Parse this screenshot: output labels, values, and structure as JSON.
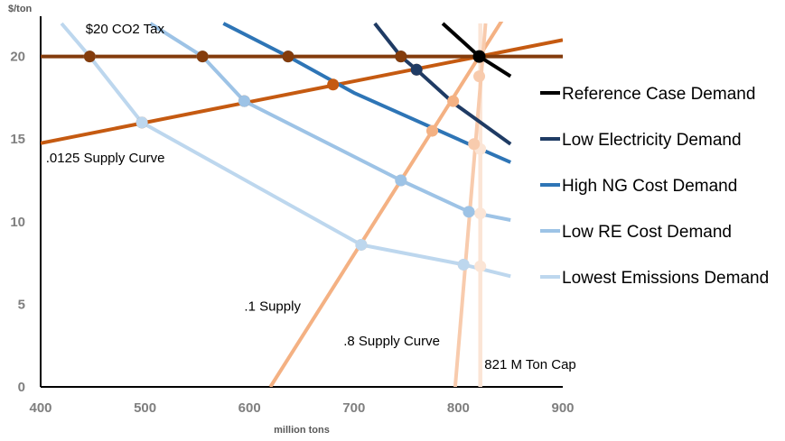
{
  "chart_data": {
    "type": "line",
    "xlabel": "million tons",
    "ylabel": "$/ton",
    "xlim": [
      400,
      900
    ],
    "ylim": [
      0,
      22
    ],
    "xticks": [
      "400",
      "500",
      "600",
      "700",
      "800",
      "900"
    ],
    "yticks": [
      "0",
      "5",
      "10",
      "15",
      "20"
    ],
    "legend_position": "right",
    "series": [
      {
        "name": "Reference Case Demand",
        "color": "#000000",
        "role": "demand",
        "points": [
          [
            785,
            22
          ],
          [
            820,
            20
          ],
          [
            850,
            18.8
          ]
        ],
        "markers": [
          [
            820,
            20
          ]
        ]
      },
      {
        "name": "Low Electricity Demand",
        "color": "#1f3b64",
        "role": "demand",
        "points": [
          [
            720,
            22
          ],
          [
            745,
            20
          ],
          [
            760,
            19.2
          ],
          [
            795,
            17.2
          ],
          [
            850,
            14.7
          ]
        ],
        "markers": [
          [
            745,
            20
          ],
          [
            760,
            19.2
          ]
        ]
      },
      {
        "name": "High NG Cost Demand",
        "color": "#2e75b6",
        "role": "demand",
        "points": [
          [
            575,
            22
          ],
          [
            637,
            20
          ],
          [
            700,
            17.8
          ],
          [
            810,
            14.7
          ],
          [
            850,
            13.6
          ]
        ],
        "markers": [
          [
            637,
            20
          ]
        ]
      },
      {
        "name": "Low RE Cost Demand",
        "color": "#9dc3e6",
        "role": "demand",
        "points": [
          [
            505,
            22
          ],
          [
            555,
            20
          ],
          [
            595,
            17.3
          ],
          [
            745,
            12.5
          ],
          [
            810,
            10.6
          ],
          [
            850,
            10.1
          ]
        ],
        "markers": [
          [
            555,
            20
          ],
          [
            595,
            17.3
          ],
          [
            745,
            12.5
          ],
          [
            810,
            10.6
          ]
        ]
      },
      {
        "name": "Lowest Emissions Demand",
        "color": "#bdd7ee",
        "role": "demand",
        "points": [
          [
            420,
            22
          ],
          [
            447,
            20
          ],
          [
            497,
            16
          ],
          [
            707,
            8.6
          ],
          [
            805,
            7.4
          ],
          [
            850,
            6.7
          ]
        ],
        "markers": [
          [
            447,
            20
          ],
          [
            497,
            16
          ],
          [
            707,
            8.6
          ],
          [
            805,
            7.4
          ]
        ]
      },
      {
        "name": "",
        "color": "#c55a11",
        "role": "supply",
        "points": [
          [
            400,
            14.75
          ],
          [
            900,
            21
          ]
        ],
        "markers": [
          [
            497,
            16
          ],
          [
            595,
            17.3
          ],
          [
            680,
            18.3
          ],
          [
            760,
            19.2
          ]
        ]
      },
      {
        "name": "",
        "color": "#f4b183",
        "role": "supply",
        "points": [
          [
            620,
            0
          ],
          [
            843,
            22.3
          ]
        ],
        "markers": [
          [
            707,
            8.6
          ],
          [
            745,
            12.5
          ],
          [
            775,
            15.5
          ],
          [
            795,
            17.3
          ]
        ]
      },
      {
        "name": "",
        "color": "#f8cbad",
        "role": "supply",
        "points": [
          [
            797,
            0
          ],
          [
            826,
            22
          ]
        ],
        "markers": [
          [
            805,
            7.4
          ],
          [
            810,
            10.6
          ],
          [
            815,
            14.7
          ],
          [
            820,
            18.8
          ]
        ]
      },
      {
        "name": "",
        "color": "#fbe5d6",
        "role": "cap",
        "points": [
          [
            821,
            0
          ],
          [
            821,
            22
          ]
        ],
        "markers": [
          [
            821,
            7.3
          ],
          [
            821,
            10.5
          ],
          [
            821,
            14.4
          ]
        ]
      },
      {
        "name": "",
        "color": "#843c0c",
        "role": "tax",
        "points": [
          [
            400,
            20
          ],
          [
            900,
            20
          ]
        ],
        "markers": [
          [
            447,
            20
          ],
          [
            555,
            20
          ],
          [
            637,
            20
          ],
          [
            745,
            20
          ]
        ]
      }
    ],
    "annotations": [
      {
        "id": "tax",
        "text": "$20 CO2 Tax",
        "x": 443,
        "y": 21.4
      },
      {
        "id": "s0125",
        "text": ".0125 Supply Curve",
        "x": 405,
        "y": 13.6
      },
      {
        "id": "s1",
        "text": ".1 Supply",
        "x": 595,
        "y": 4.6
      },
      {
        "id": "s8",
        "text": ".8 Supply Curve",
        "x": 690,
        "y": 2.5
      },
      {
        "id": "cap",
        "text": "821 M Ton Cap",
        "x": 825,
        "y": 1.1
      }
    ]
  }
}
